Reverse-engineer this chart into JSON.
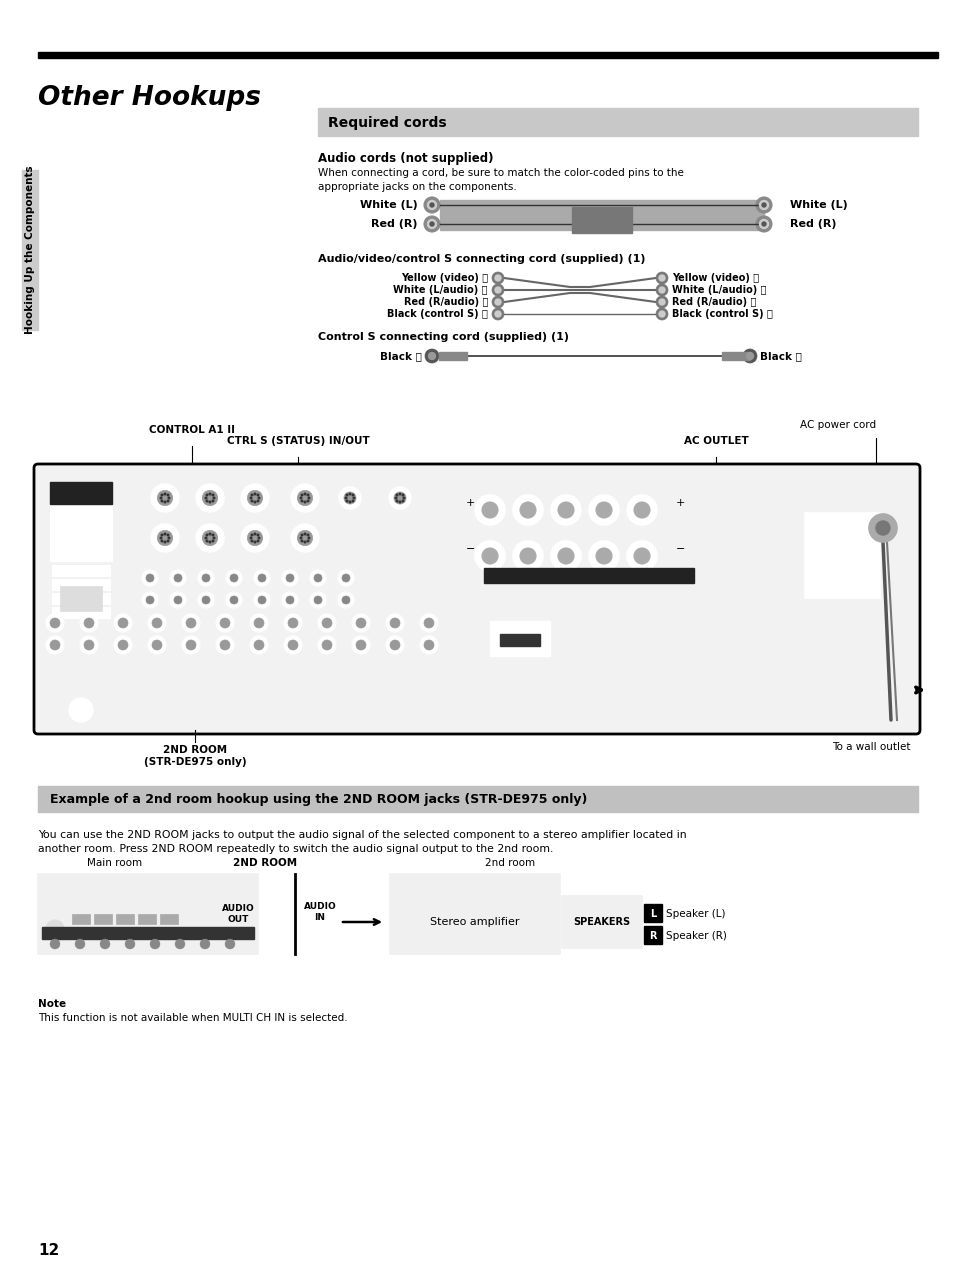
{
  "title": "Other Hookups",
  "page_number": "12",
  "sidebar_text": "Hooking Up the Components",
  "required_cords_title": "Required cords",
  "audio_cords_title": "Audio cords (not supplied)",
  "audio_cords_desc": "When connecting a cord, be sure to match the color-coded pins to the\nappropriate jacks on the components.",
  "white_L": "White (L)",
  "red_R": "Red (R)",
  "av_cord_title": "Audio/video/control S connecting cord (supplied) (1)",
  "av_left_labels": [
    "Yellow (video) Ⓐ",
    "White (L/audio) Ⓑ",
    "Red (R/audio) Ⓒ",
    "Black (control S) Ⓓ"
  ],
  "av_right_labels": [
    "Yellow (video) Ⓐ",
    "White (L/audio) Ⓑ",
    "Red (R/audio) Ⓒ",
    "Black (control S) Ⓓ"
  ],
  "control_s_title": "Control S connecting cord (supplied) (1)",
  "black_e_left": "Black Ⓔ",
  "black_e_right": "Black Ⓔ",
  "control_a1_label": "CONTROL A1 II",
  "ctrl_s_label": "CTRL S (STATUS) IN/OUT",
  "ac_outlet_label": "AC OUTLET",
  "ac_power_cord_label": "AC power cord",
  "to_wall_label": "To a wall outlet",
  "nd_room_label": "2ND ROOM\n(STR-DE975 only)",
  "example_title": "Example of a 2nd room hookup using the 2ND ROOM jacks (STR-DE975 only)",
  "example_desc": "You can use the 2ND ROOM jacks to output the audio signal of the selected component to a stereo amplifier located in\nanother room. Press 2ND ROOM repeatedly to switch the audio signal output to the 2nd room.",
  "note_title": "Note",
  "note_text": "This function is not available when MULTI CH IN is selected.",
  "main_room_label": "Main room",
  "nd_room_label2": "2ND ROOM",
  "audio_out_label": "AUDIO\nOUT",
  "audio_in_label": "AUDIO\nIN",
  "nd_room_label3": "2nd room",
  "stereo_amp_label": "Stereo amplifier",
  "speakers_label": "SPEAKERS",
  "speaker_L_label": "Speaker (L)",
  "speaker_R_label": "Speaker (R)",
  "bg_color": "#ffffff",
  "header_gray": "#cccccc",
  "example_gray": "#c0c0c0"
}
